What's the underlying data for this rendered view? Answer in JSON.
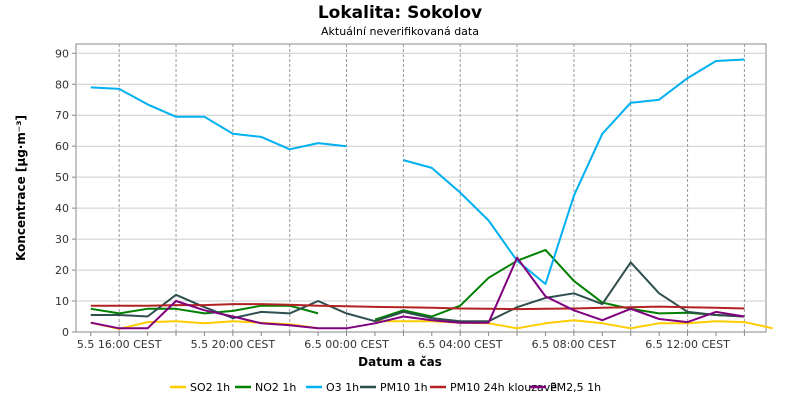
{
  "chart_data": {
    "type": "line",
    "title": "Lokalita: Sokolov",
    "subtitle": "Aktuální neverifikovaná data",
    "xlabel": "Datum a čas",
    "ylabel": "Koncentrace [µg·m⁻³]",
    "ylim": [
      0,
      93
    ],
    "yticks": [
      0,
      10,
      20,
      30,
      40,
      50,
      60,
      70,
      80,
      90
    ],
    "x_tick_labels": [
      "5.5 16:00 CEST",
      "5.5 20:00 CEST",
      "6.5 00:00 CEST",
      "6.5 04:00 CEST",
      "6.5 08:00 CEST",
      "6.5 12:00 CEST"
    ],
    "x_tick_hours": [
      16,
      20,
      24,
      28,
      32,
      36
    ],
    "x_hours": [
      15,
      16,
      17,
      18,
      19,
      20,
      21,
      22,
      23,
      24,
      25,
      26,
      27,
      28,
      29,
      30,
      31,
      32,
      33,
      34,
      35,
      36,
      37,
      38,
      39
    ],
    "grid": true,
    "legend_position": "bottom",
    "series": [
      {
        "name": "SO2 1h",
        "color": "#ffcc00",
        "values": [
          3,
          1,
          3.2,
          3.5,
          2.8,
          3.5,
          3,
          2.5,
          1.2,
          null,
          3.5,
          3.5,
          3.5,
          3,
          2.8,
          1.2,
          2.8,
          3.8,
          2.8,
          1.2,
          2.8,
          2.8,
          3.5,
          3.2,
          1.2
        ]
      },
      {
        "name": "NO2 1h",
        "color": "#008000",
        "values": [
          7.5,
          6,
          7.5,
          7.5,
          6,
          6.8,
          8.5,
          8.5,
          6,
          null,
          4,
          7,
          5,
          8.5,
          17.5,
          23,
          26.5,
          16.5,
          9.5,
          7.5,
          6,
          6.2,
          5.5,
          5,
          null
        ]
      },
      {
        "name": "O3 1h",
        "color": "#00b0f0",
        "values": [
          79,
          78.5,
          73.5,
          69.5,
          69.5,
          64,
          63,
          59,
          61,
          60,
          null,
          55.5,
          53,
          45,
          36,
          23,
          15.5,
          44,
          64,
          74,
          75,
          82,
          87.5,
          88,
          null
        ]
      },
      {
        "name": "PM10 1h",
        "color": "#2f4f4f",
        "values": [
          5.5,
          5.5,
          5,
          12,
          8,
          4.5,
          6.5,
          6,
          10,
          6,
          3.5,
          6.5,
          4.5,
          3.5,
          3.5,
          8,
          11,
          12.5,
          9,
          22.5,
          12.5,
          6.5,
          5.5,
          5,
          null
        ]
      },
      {
        "name": "PM10 24h klouzavě",
        "color": "#b22222",
        "values": [
          8.5,
          8.5,
          8.5,
          8.7,
          8.7,
          9,
          9,
          8.8,
          8.5,
          8.3,
          8.1,
          8,
          7.8,
          7.6,
          7.5,
          7.4,
          7.5,
          7.6,
          7.8,
          8,
          8.2,
          8,
          7.8,
          7.6,
          null
        ]
      },
      {
        "name": "PM2,5 1h",
        "color": "#800080",
        "values": [
          3,
          1.2,
          1.2,
          10,
          7,
          5,
          2.8,
          2.2,
          1.2,
          1.2,
          2.8,
          5,
          3.8,
          3,
          3,
          24,
          11.5,
          7,
          3.8,
          7.5,
          4.2,
          3.2,
          6.5,
          5,
          null
        ]
      }
    ]
  }
}
